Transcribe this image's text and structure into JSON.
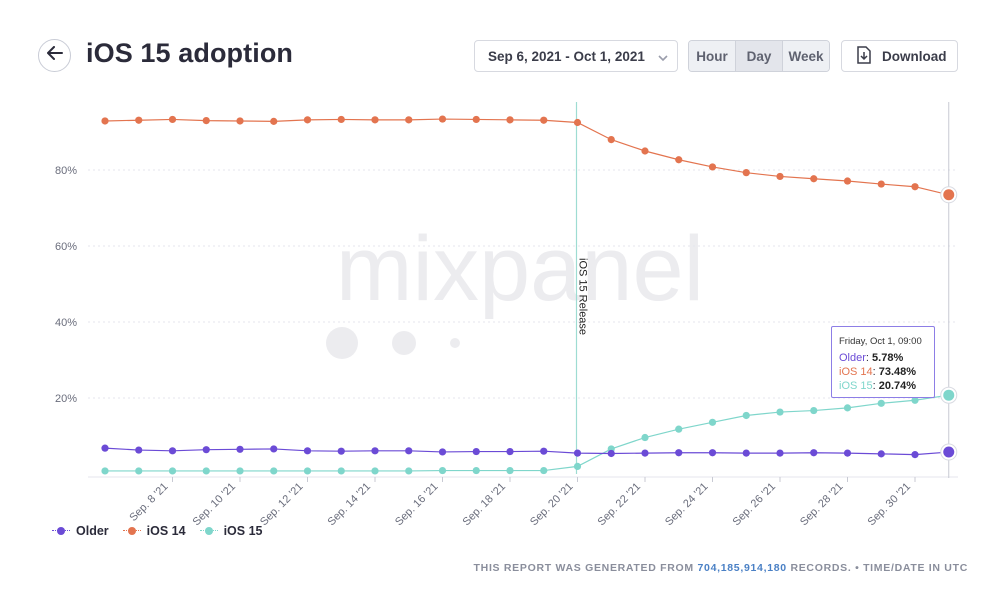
{
  "header": {
    "title": "iOS 15 adoption",
    "date_range": "Sep 6, 2021 - Oct 1, 2021",
    "granularity": [
      "Hour",
      "Day",
      "Week"
    ],
    "granularity_selected": "Day",
    "download_label": "Download",
    "icons": {
      "back": "arrow-left-icon",
      "dropdown": "chevron-down-icon",
      "download": "download-icon"
    }
  },
  "watermark": "mixpanel",
  "tooltip": {
    "date": "Friday, Oct 1, 09:00",
    "rows": [
      {
        "name": "Older",
        "value": "5.78%",
        "color": "#6b4bd6"
      },
      {
        "name": "iOS 14",
        "value": "73.48%",
        "color": "#e3744f"
      },
      {
        "name": "iOS 15",
        "value": "20.74%",
        "color": "#7fd6cb"
      }
    ]
  },
  "footer": {
    "prefix": "THIS REPORT WAS GENERATED FROM",
    "count": "704,185,914,180",
    "suffix": "RECORDS. • TIME/DATE IN UTC"
  },
  "chart_data": {
    "type": "line",
    "y_ticks": [
      "20%",
      "40%",
      "60%",
      "80%"
    ],
    "y_tick_values": [
      20,
      40,
      60,
      80
    ],
    "ylim": [
      0,
      100
    ],
    "x_ticks": [
      "Sep. 8 '21",
      "Sep. 10 '21",
      "Sep. 12 '21",
      "Sep. 14 '21",
      "Sep. 16 '21",
      "Sep. 18 '21",
      "Sep. 20 '21",
      "Sep. 22 '21",
      "Sep. 24 '21",
      "Sep. 26 '21",
      "Sep. 28 '21",
      "Sep. 30 '21"
    ],
    "annotation": {
      "label": "iOS 15 Release",
      "index": 14
    },
    "grid": true,
    "legend_position": "bottom-left",
    "series": [
      {
        "name": "iOS 14",
        "color": "#e3744f",
        "values": [
          92.9,
          93.1,
          93.3,
          93.0,
          92.9,
          92.8,
          93.2,
          93.3,
          93.2,
          93.2,
          93.4,
          93.3,
          93.2,
          93.1,
          92.5,
          88.0,
          85.0,
          82.7,
          80.8,
          79.3,
          78.3,
          77.7,
          77.1,
          76.3,
          75.6,
          73.48
        ]
      },
      {
        "name": "Older",
        "color": "#6b4bd6",
        "values": [
          6.8,
          6.3,
          6.1,
          6.4,
          6.5,
          6.6,
          6.1,
          6.0,
          6.1,
          6.1,
          5.8,
          5.9,
          5.9,
          6.0,
          5.5,
          5.4,
          5.5,
          5.6,
          5.6,
          5.5,
          5.5,
          5.6,
          5.5,
          5.3,
          5.1,
          5.78
        ]
      },
      {
        "name": "iOS 15",
        "color": "#7fd6cb",
        "values": [
          0.8,
          0.8,
          0.8,
          0.8,
          0.8,
          0.8,
          0.8,
          0.8,
          0.8,
          0.8,
          0.9,
          0.9,
          0.9,
          0.9,
          2.0,
          6.6,
          9.6,
          11.8,
          13.6,
          15.4,
          16.3,
          16.7,
          17.4,
          18.6,
          19.4,
          20.74
        ]
      }
    ]
  }
}
